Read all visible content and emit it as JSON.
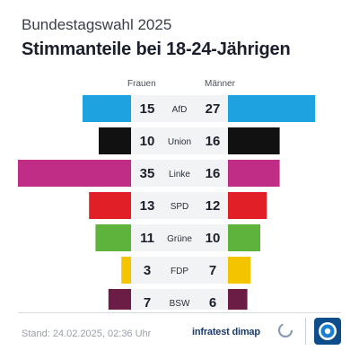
{
  "header": {
    "supertitle": "Bundestagswahl 2025",
    "title": "Stimmanteile bei 18-24-Jährigen"
  },
  "chart_data": {
    "type": "bar",
    "title": "Stimmanteile bei 18-24-Jährigen",
    "categories": [
      "AfD",
      "Union",
      "Linke",
      "SPD",
      "Grüne",
      "FDP",
      "BSW"
    ],
    "series": [
      {
        "name": "Frauen",
        "values": [
          15,
          10,
          35,
          13,
          11,
          3,
          7
        ]
      },
      {
        "name": "Männer",
        "values": [
          27,
          16,
          16,
          12,
          10,
          7,
          6
        ]
      }
    ],
    "colors": [
      "#1ea3e0",
      "#111111",
      "#c02d86",
      "#e01f26",
      "#5db33b",
      "#f5c400",
      "#6b1d45"
    ],
    "xlim": [
      0,
      35
    ]
  },
  "footer": {
    "stand": "Stand: 24.02.2025, 02:36 Uhr",
    "brand": "infratest dimap",
    "brand_icon": "infratest-dimap-mark-icon",
    "logo_icon": "tagesschau-logo-icon"
  }
}
